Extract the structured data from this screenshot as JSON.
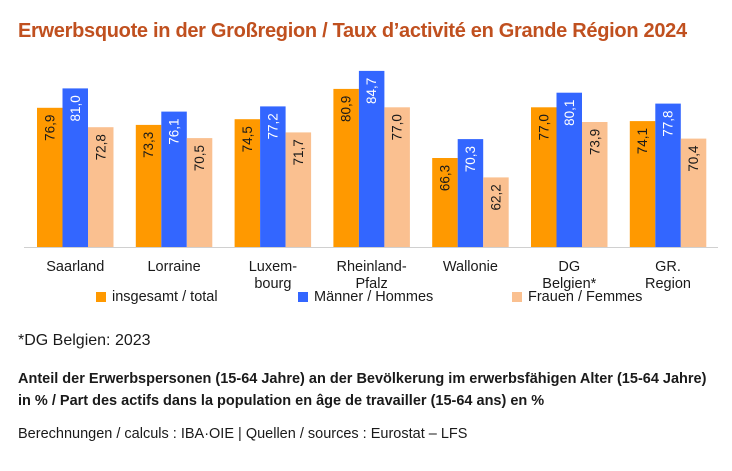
{
  "chart_data": {
    "type": "bar",
    "title": "Erwerbsquote in der Großregion / Taux d’activité en Grande Région 2024",
    "categories": [
      [
        "Saarland"
      ],
      [
        "Lorraine"
      ],
      [
        "Luxem-",
        "bourg"
      ],
      [
        "Rheinland-",
        "Pfalz"
      ],
      [
        "Wallonie"
      ],
      [
        "DG",
        "Belgien*"
      ],
      [
        "GR.",
        "Region"
      ]
    ],
    "series": [
      {
        "name": "insgesamt / total",
        "color": "#ff9900",
        "values": [
          76.9,
          73.3,
          74.5,
          80.9,
          66.3,
          77.0,
          74.1
        ]
      },
      {
        "name": "Männer / Hommes",
        "color": "#3366ff",
        "values": [
          81.0,
          76.1,
          77.2,
          84.7,
          70.3,
          80.1,
          77.8
        ]
      },
      {
        "name": "Frauen / Femmes",
        "color": "#fac090",
        "values": [
          72.8,
          70.5,
          71.7,
          77.0,
          62.2,
          73.9,
          70.4
        ]
      }
    ],
    "ylim": [
      47.5,
      87
    ],
    "grid": false,
    "legend": "bottom",
    "xlabel": "",
    "ylabel": "",
    "decimal_separator": ","
  },
  "footnote": "*DG Belgien: 2023",
  "description": "Anteil der Erwerbspersonen (15-64 Jahre) an der Bevölkerung im erwerbsfähigen Alter (15-64 Jahre) in %  / Part des actifs dans la population en âge de travailler (15-64 ans) en %",
  "source": "Berechnungen / calculs : IBA·OIE  |  Quellen / sources : Eurostat – LFS"
}
